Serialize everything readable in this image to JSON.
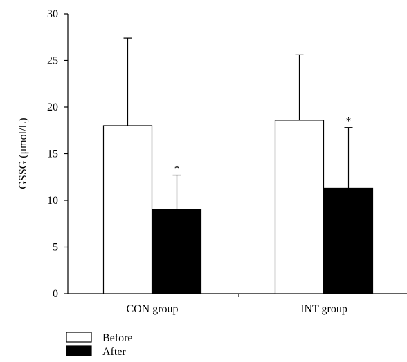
{
  "chart_data": {
    "type": "bar",
    "title": "",
    "xlabel": "",
    "ylabel": "GSSG (μmol/L)",
    "ylim": [
      0,
      30
    ],
    "yticks": [
      "0",
      "5",
      "10",
      "15",
      "20",
      "25",
      "30"
    ],
    "categories": [
      "CON group",
      "INT group"
    ],
    "series": [
      {
        "name": "Before",
        "values": [
          18.0,
          18.6
        ],
        "error": [
          9.4,
          7.0
        ],
        "fill": "#ffffff",
        "significance": [
          "",
          ""
        ]
      },
      {
        "name": "After",
        "values": [
          9.0,
          11.3
        ],
        "error": [
          3.7,
          6.5
        ],
        "fill": "#000000",
        "significance": [
          "*",
          "*"
        ]
      }
    ],
    "error_bars": "upper only",
    "grid": false,
    "legend_position": "bottom-left"
  }
}
